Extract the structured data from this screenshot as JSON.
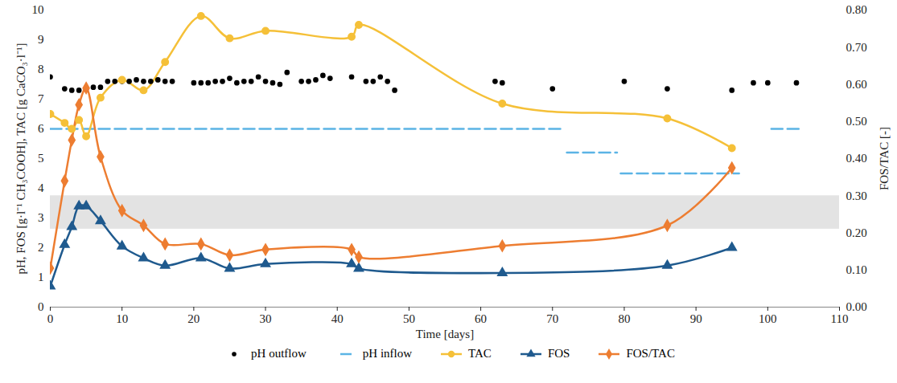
{
  "chart_data": {
    "type": "line",
    "x_label": "Time [days]",
    "y_label": "pH, FOS [g·l⁻¹ CH₃COOH], TAC [g CaCO₃·l⁻¹]",
    "y2_label": "FOS/TAC [-]",
    "xlim": [
      0,
      110
    ],
    "xticks": [
      0,
      10,
      20,
      30,
      40,
      50,
      60,
      70,
      80,
      90,
      100,
      110
    ],
    "ylim": [
      0,
      10
    ],
    "yticks": [
      0,
      1,
      2,
      3,
      4,
      5,
      6,
      7,
      8,
      9,
      10
    ],
    "y2lim": [
      0,
      0.8
    ],
    "y2ticks": [
      {
        "value": 0,
        "label": "0.00"
      },
      {
        "value": 0.1,
        "label": "0.10"
      },
      {
        "value": 0.2,
        "label": "0.20"
      },
      {
        "value": 0.3,
        "label": "0.30"
      },
      {
        "value": 0.4,
        "label": "0.40"
      },
      {
        "value": 0.5,
        "label": "0.50"
      },
      {
        "value": 0.6,
        "label": "0.60"
      },
      {
        "value": 0.7,
        "label": "0.70"
      },
      {
        "value": 0.8,
        "label": "0.80"
      }
    ],
    "grid": false,
    "legend": "bottom",
    "shaded_band_y2": [
      0.21,
      0.3
    ],
    "series": [
      {
        "name": "pH outflow",
        "type": "scatter",
        "color": "#000000",
        "marker": "circle",
        "x": [
          0,
          2,
          3,
          4,
          5,
          6,
          7,
          8,
          9,
          10,
          11,
          12,
          13,
          14,
          15,
          16,
          17,
          20,
          21,
          22,
          23,
          24,
          25,
          26,
          27,
          28,
          29,
          30,
          31,
          32,
          33,
          35,
          36,
          37,
          38,
          39,
          42,
          44,
          45,
          46,
          47,
          48,
          62,
          63,
          70,
          80,
          86,
          95,
          98,
          100,
          104
        ],
        "values": [
          7.75,
          7.35,
          7.3,
          7.3,
          7.35,
          7.4,
          7.4,
          7.6,
          7.6,
          7.6,
          7.6,
          7.65,
          7.6,
          7.6,
          7.65,
          7.6,
          7.6,
          7.55,
          7.55,
          7.55,
          7.6,
          7.6,
          7.7,
          7.55,
          7.6,
          7.6,
          7.75,
          7.6,
          7.55,
          7.5,
          7.9,
          7.6,
          7.6,
          7.65,
          7.8,
          7.7,
          7.75,
          7.6,
          7.6,
          7.75,
          7.6,
          7.3,
          7.6,
          7.55,
          7.35,
          7.6,
          7.35,
          7.3,
          7.55,
          7.55,
          7.55
        ]
      },
      {
        "name": "pH inflow",
        "type": "line",
        "color": "#5bb4e5",
        "line_style": "dashed",
        "x": [
          0,
          71.5,
          71.8,
          72,
          79,
          79.3,
          79.5,
          96,
          98,
          100.5,
          104.5
        ],
        "values": [
          6,
          6,
          null,
          5.2,
          5.2,
          null,
          4.5,
          4.5,
          null,
          6,
          6
        ]
      },
      {
        "name": "TAC",
        "type": "line",
        "color": "#f5c038",
        "marker": "circle",
        "line_style": "smooth",
        "x": [
          0,
          2,
          3,
          4,
          5,
          7,
          10,
          13,
          16,
          21,
          25,
          30,
          42,
          43,
          63,
          86,
          95
        ],
        "values": [
          6.5,
          6.2,
          6.0,
          6.3,
          5.75,
          7.05,
          7.65,
          7.3,
          8.25,
          9.8,
          9.05,
          9.3,
          9.1,
          9.5,
          6.85,
          6.35,
          5.35
        ]
      },
      {
        "name": "FOS",
        "type": "line",
        "color": "#1f5a8e",
        "marker": "triangle",
        "line_style": "smooth",
        "x": [
          0,
          2,
          3,
          4,
          5,
          7,
          10,
          13,
          16,
          21,
          25,
          30,
          42,
          43,
          63,
          86,
          95
        ],
        "values": [
          0.7,
          2.1,
          2.7,
          3.4,
          3.4,
          2.9,
          2.05,
          1.65,
          1.4,
          1.65,
          1.3,
          1.45,
          1.45,
          1.3,
          1.15,
          1.4,
          2.0
        ]
      },
      {
        "name": "FOS/TAC",
        "type": "line",
        "color": "#ed7d31",
        "marker": "diamond",
        "line_style": "smooth",
        "axis": "y2",
        "x": [
          0,
          2,
          3,
          4,
          5,
          7,
          10,
          13,
          16,
          21,
          25,
          30,
          42,
          43,
          63,
          86,
          95
        ],
        "values": [
          0.105,
          0.34,
          0.45,
          0.545,
          0.59,
          0.405,
          0.26,
          0.22,
          0.17,
          0.17,
          0.14,
          0.155,
          0.155,
          0.135,
          0.165,
          0.22,
          0.375
        ]
      }
    ]
  }
}
